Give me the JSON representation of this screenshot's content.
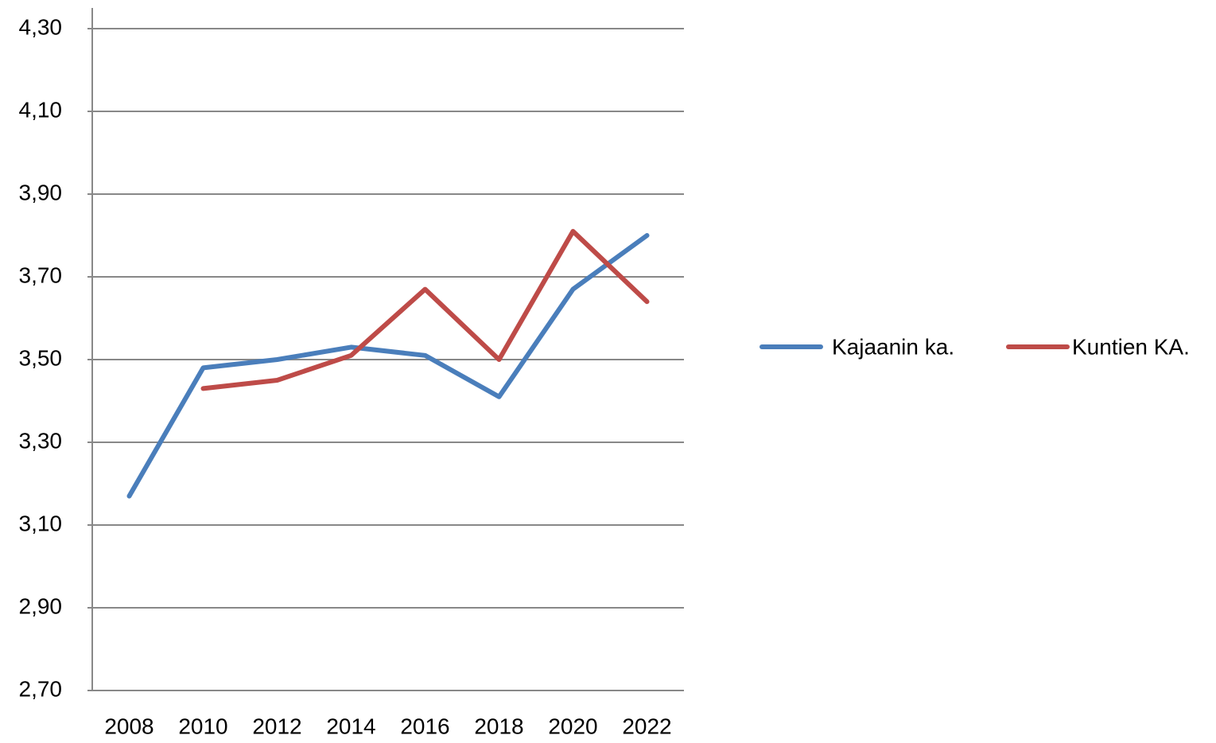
{
  "chart_data": {
    "type": "line",
    "categories": [
      "2008",
      "2010",
      "2012",
      "2014",
      "2016",
      "2018",
      "2020",
      "2022"
    ],
    "series": [
      {
        "name": "Kajaanin ka.",
        "color": "#4a7ebb",
        "values": [
          3.17,
          3.48,
          3.5,
          3.53,
          3.51,
          3.41,
          3.67,
          3.8
        ]
      },
      {
        "name": "Kuntien KA.",
        "color": "#be4b48",
        "values": [
          null,
          3.43,
          3.45,
          3.51,
          3.67,
          3.5,
          3.81,
          3.64
        ]
      }
    ],
    "ylim": [
      2.7,
      4.3
    ],
    "yticks": [
      {
        "value": 2.7,
        "label": "2,70"
      },
      {
        "value": 2.9,
        "label": "2,90"
      },
      {
        "value": 3.1,
        "label": "3,10"
      },
      {
        "value": 3.3,
        "label": "3,30"
      },
      {
        "value": 3.5,
        "label": "3,50"
      },
      {
        "value": 3.7,
        "label": "3,70"
      },
      {
        "value": 3.9,
        "label": "3,90"
      },
      {
        "value": 4.1,
        "label": "4,10"
      },
      {
        "value": 4.3,
        "label": "4,30"
      }
    ],
    "grid": true,
    "legend": "right"
  }
}
